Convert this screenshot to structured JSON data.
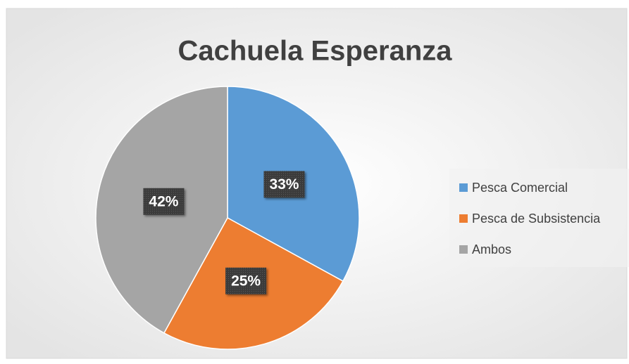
{
  "chart_data": {
    "type": "pie",
    "title": "Cachuela Esperanza",
    "categories": [
      "Pesca Comercial",
      "Pesca de Subsistencia",
      "Ambos"
    ],
    "values": [
      33,
      25,
      42
    ],
    "value_labels": [
      "33%",
      "25%",
      "42%"
    ],
    "colors": [
      "#5b9bd5",
      "#ed7d31",
      "#a5a5a5"
    ],
    "legend": "right"
  }
}
